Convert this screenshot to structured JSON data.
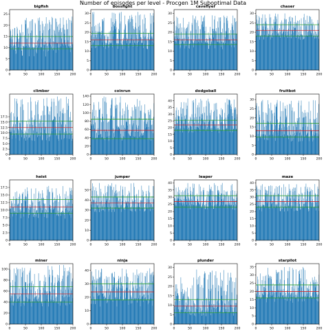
{
  "figure": {
    "title": "Number of episodes per level - Procgen 1M Suboptimal Data"
  },
  "colors": {
    "bars": "#1f77b4",
    "mean_line": "#d62728",
    "std_lines": "#2ca02c",
    "axes": "#000000"
  },
  "chart_data": [
    {
      "type": "bar",
      "title": "bigfish",
      "x_range": [
        0,
        200
      ],
      "x_ticks": [
        0,
        50,
        100,
        150,
        200
      ],
      "ylim": [
        0,
        27
      ],
      "y_ticks": [
        0,
        5,
        10,
        15,
        20,
        25
      ],
      "levels": 200,
      "baseline": 10,
      "mean": 12,
      "std_lines": [
        9.5,
        15
      ],
      "y_min_observed": 6,
      "y_max_observed": 24
    },
    {
      "type": "bar",
      "title": "bossfight",
      "x_range": [
        0,
        200
      ],
      "x_ticks": [
        0,
        50,
        100,
        150,
        200
      ],
      "ylim": [
        0,
        32
      ],
      "y_ticks": [
        0,
        5,
        10,
        15,
        20,
        25,
        30
      ],
      "levels": 200,
      "baseline": 14,
      "mean": 16,
      "std_lines": [
        13,
        19.5
      ],
      "y_min_observed": 11,
      "y_max_observed": 31
    },
    {
      "type": "bar",
      "title": "caveflyer",
      "x_range": [
        0,
        200
      ],
      "x_ticks": [
        0,
        50,
        100,
        150,
        200
      ],
      "ylim": [
        0,
        32
      ],
      "y_ticks": [
        0,
        5,
        10,
        15,
        20,
        25,
        30
      ],
      "levels": 200,
      "baseline": 14,
      "mean": 16,
      "std_lines": [
        13.5,
        19
      ],
      "y_min_observed": 11,
      "y_max_observed": 29
    },
    {
      "type": "bar",
      "title": "chaser",
      "x_range": [
        0,
        200
      ],
      "x_ticks": [
        0,
        50,
        100,
        150,
        200
      ],
      "ylim": [
        0,
        32
      ],
      "y_ticks": [
        0,
        5,
        10,
        15,
        20,
        25,
        30
      ],
      "levels": 200,
      "baseline": 18,
      "mean": 21,
      "std_lines": [
        18,
        24
      ],
      "y_min_observed": 16,
      "y_max_observed": 30
    },
    {
      "type": "bar",
      "title": "climber",
      "x_range": [
        0,
        200
      ],
      "x_ticks": [
        0,
        50,
        100,
        150,
        200
      ],
      "ylim": [
        0,
        28
      ],
      "y_ticks": [
        0,
        2.5,
        5.0,
        7.5,
        10.0,
        12.5,
        15.0,
        17.5
      ],
      "y_tick_labels": [
        "0",
        "2.5",
        "5.0",
        "7.5",
        "10.0",
        "12.5",
        "15.0",
        "17.5"
      ],
      "levels": 200,
      "baseline": 9,
      "mean": 12.5,
      "std_lines": [
        9.5,
        15.5
      ],
      "y_min_observed": 6,
      "y_max_observed": 27
    },
    {
      "type": "bar",
      "title": "coinrun",
      "x_range": [
        0,
        200
      ],
      "x_ticks": [
        0,
        50,
        100,
        150,
        200
      ],
      "ylim": [
        0,
        145
      ],
      "y_ticks": [
        0,
        20,
        40,
        60,
        80,
        100,
        120,
        140
      ],
      "levels": 200,
      "baseline": 42,
      "mean": 58,
      "std_lines": [
        38,
        85
      ],
      "y_min_observed": 32,
      "y_max_observed": 140
    },
    {
      "type": "bar",
      "title": "dodgeball",
      "x_range": [
        0,
        200
      ],
      "x_ticks": [
        0,
        50,
        100,
        150,
        200
      ],
      "ylim": [
        0,
        45
      ],
      "y_ticks": [
        0,
        5,
        10,
        15,
        20,
        25,
        30,
        35,
        40
      ],
      "levels": 200,
      "baseline": 19,
      "mean": 22,
      "std_lines": [
        18,
        25.5
      ],
      "y_min_observed": 16,
      "y_max_observed": 42
    },
    {
      "type": "bar",
      "title": "fruitbot",
      "x_range": [
        0,
        200
      ],
      "x_ticks": [
        0,
        50,
        100,
        150,
        200
      ],
      "ylim": [
        0,
        33
      ],
      "y_ticks": [
        0,
        5,
        10,
        15,
        20,
        25,
        30
      ],
      "levels": 200,
      "baseline": 10,
      "mean": 13,
      "std_lines": [
        9.5,
        17
      ],
      "y_min_observed": 7,
      "y_max_observed": 30
    },
    {
      "type": "bar",
      "title": "heist",
      "x_range": [
        0,
        200
      ],
      "x_ticks": [
        0,
        50,
        100,
        150,
        200
      ],
      "ylim": [
        0,
        20
      ],
      "y_ticks": [
        0,
        2.5,
        5.0,
        7.5,
        10.0,
        12.5,
        15.0,
        17.5
      ],
      "y_tick_labels": [
        "0",
        "2.5",
        "5.0",
        "7.5",
        "10.0",
        "12.5",
        "15.0",
        "17.5"
      ],
      "levels": 200,
      "baseline": 9,
      "mean": 11,
      "std_lines": [
        9,
        13.5
      ],
      "y_min_observed": 7,
      "y_max_observed": 18
    },
    {
      "type": "bar",
      "title": "jumper",
      "x_range": [
        0,
        200
      ],
      "x_ticks": [
        0,
        50,
        100,
        150,
        200
      ],
      "ylim": [
        0,
        60
      ],
      "y_ticks": [
        0,
        10,
        20,
        30,
        40,
        50
      ],
      "levels": 200,
      "baseline": 32,
      "mean": 37,
      "std_lines": [
        32,
        43
      ],
      "y_min_observed": 28,
      "y_max_observed": 57
    },
    {
      "type": "bar",
      "title": "leaper",
      "x_range": [
        0,
        200
      ],
      "x_ticks": [
        0,
        50,
        100,
        150,
        200
      ],
      "ylim": [
        0,
        42
      ],
      "y_ticks": [
        0,
        5,
        10,
        15,
        20,
        25,
        30,
        35,
        40
      ],
      "levels": 200,
      "baseline": 24,
      "mean": 27,
      "std_lines": [
        23,
        31
      ],
      "y_min_observed": 21,
      "y_max_observed": 40
    },
    {
      "type": "bar",
      "title": "maze",
      "x_range": [
        0,
        200
      ],
      "x_ticks": [
        0,
        50,
        100,
        150,
        200
      ],
      "ylim": [
        0,
        42
      ],
      "y_ticks": [
        0,
        5,
        10,
        15,
        20,
        25,
        30,
        35,
        40
      ],
      "levels": 200,
      "baseline": 23,
      "mean": 27,
      "std_lines": [
        23,
        31
      ],
      "y_min_observed": 20,
      "y_max_observed": 40
    },
    {
      "type": "bar",
      "title": "miner",
      "x_range": [
        0,
        200
      ],
      "x_ticks": [
        0,
        50,
        100,
        150,
        200
      ],
      "ylim": [
        0,
        110
      ],
      "y_ticks": [
        0,
        20,
        40,
        60,
        80,
        100
      ],
      "levels": 200,
      "baseline": 40,
      "mean": 55,
      "std_lines": [
        40,
        68
      ],
      "y_min_observed": 32,
      "y_max_observed": 108
    },
    {
      "type": "bar",
      "title": "ninja",
      "x_range": [
        0,
        200
      ],
      "x_ticks": [
        0,
        50,
        100,
        150,
        200
      ],
      "ylim": [
        0,
        45
      ],
      "y_ticks": [
        0,
        10,
        20,
        30,
        40
      ],
      "levels": 200,
      "baseline": 18,
      "mean": 24,
      "std_lines": [
        18,
        30
      ],
      "y_min_observed": 13,
      "y_max_observed": 42
    },
    {
      "type": "bar",
      "title": "plunder",
      "x_range": [
        0,
        200
      ],
      "x_ticks": [
        0,
        50,
        100,
        150,
        200
      ],
      "ylim": [
        0,
        32
      ],
      "y_ticks": [
        0,
        5,
        10,
        15,
        20,
        25,
        30
      ],
      "levels": 200,
      "baseline": 6,
      "mean": 9.5,
      "std_lines": [
        6,
        13
      ],
      "y_min_observed": 4,
      "y_max_observed": 29
    },
    {
      "type": "bar",
      "title": "starpilot",
      "x_range": [
        0,
        200
      ],
      "x_ticks": [
        0,
        50,
        100,
        150,
        200
      ],
      "ylim": [
        0,
        37
      ],
      "y_ticks": [
        0,
        5,
        10,
        15,
        20,
        25,
        30,
        35
      ],
      "levels": 200,
      "baseline": 16,
      "mean": 20,
      "std_lines": [
        16,
        24
      ],
      "y_min_observed": 13,
      "y_max_observed": 35
    }
  ]
}
